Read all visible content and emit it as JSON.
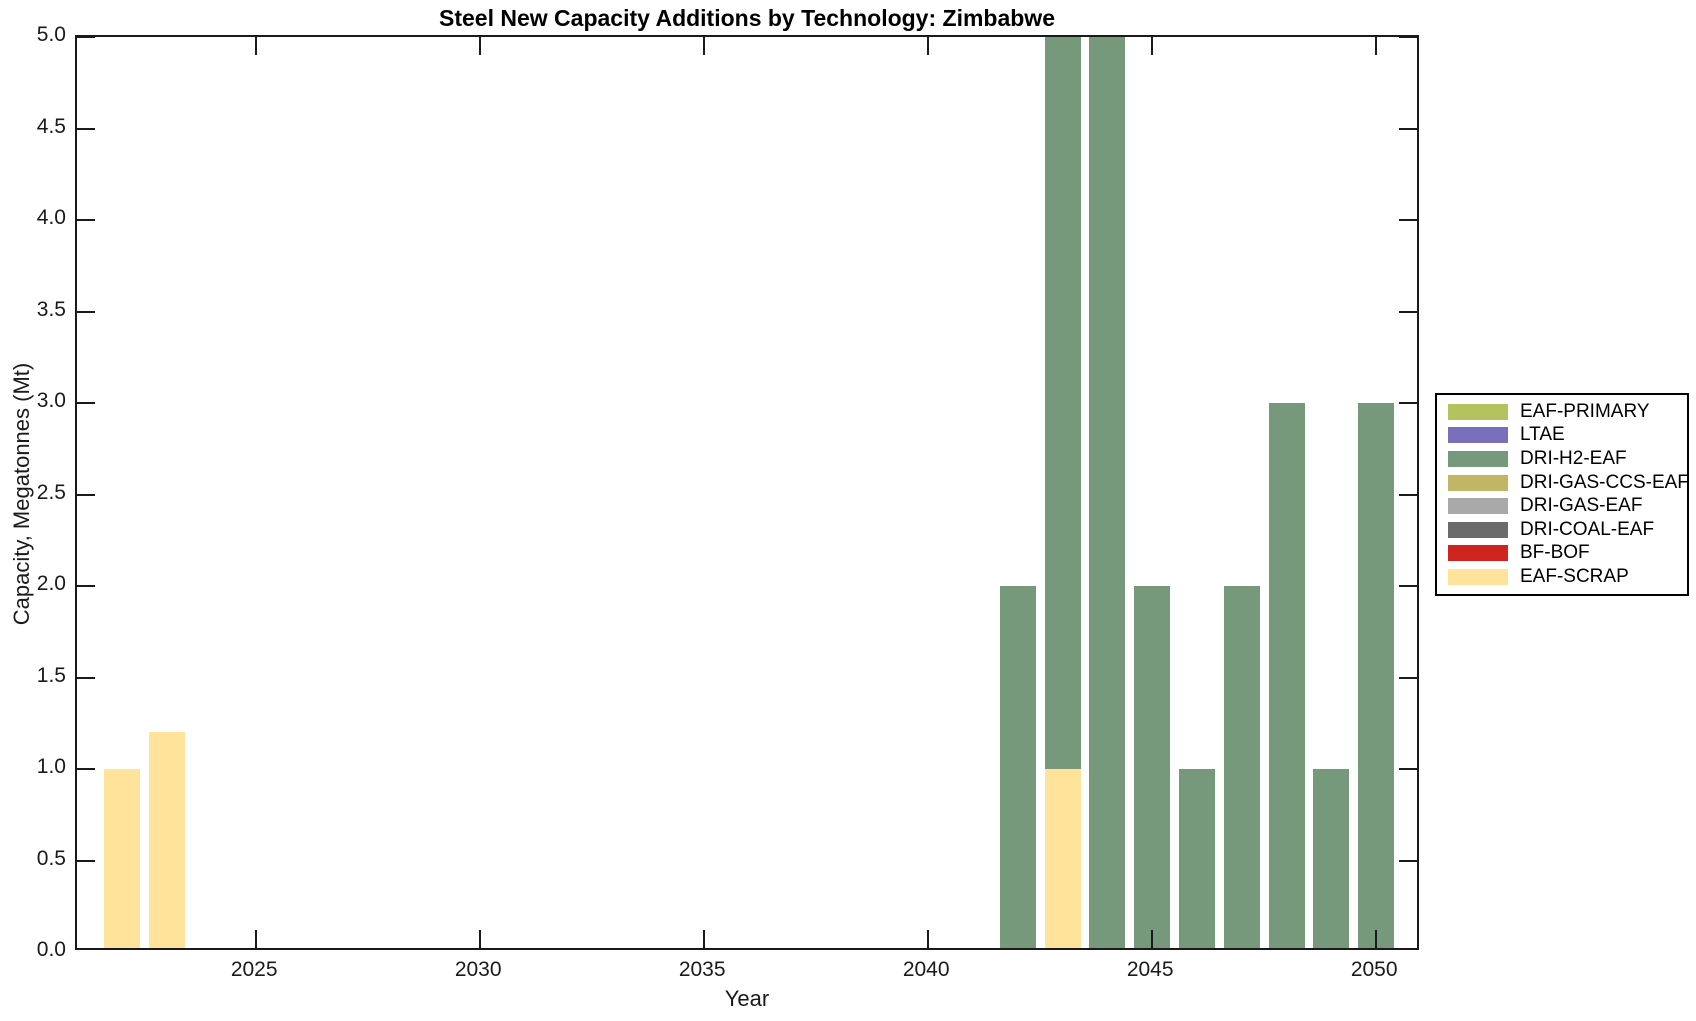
{
  "chart_data": {
    "type": "bar",
    "stacked": true,
    "title": "Steel New Capacity Additions by Technology: Zimbabwe",
    "xlabel": "Year",
    "ylabel": "Capacity, Megatonnes (Mt)",
    "xlim": [
      2021,
      2051
    ],
    "ylim": [
      0,
      5
    ],
    "xticks": [
      2025,
      2030,
      2035,
      2040,
      2045,
      2050
    ],
    "yticks": [
      0.0,
      0.5,
      1.0,
      1.5,
      2.0,
      2.5,
      3.0,
      3.5,
      4.0,
      4.5,
      5.0
    ],
    "ytick_decimals": 1,
    "grid": false,
    "legend_position": "right-outside",
    "bar_width_years": 0.8,
    "legend": [
      {
        "label": "EAF-PRIMARY",
        "color": "#B5C35E"
      },
      {
        "label": "LTAE",
        "color": "#7A6FBA"
      },
      {
        "label": "DRI-H2-EAF",
        "color": "#76997C"
      },
      {
        "label": "DRI-GAS-CCS-EAF",
        "color": "#C2B566"
      },
      {
        "label": "DRI-GAS-EAF",
        "color": "#A9A9A9"
      },
      {
        "label": "DRI-COAL-EAF",
        "color": "#6B6B6B"
      },
      {
        "label": "BF-BOF",
        "color": "#D02420"
      },
      {
        "label": "EAF-SCRAP",
        "color": "#FFE39A"
      }
    ],
    "bars": [
      {
        "year": 2022,
        "segments": [
          {
            "tech": "EAF-SCRAP",
            "value": 1.0
          }
        ]
      },
      {
        "year": 2023,
        "segments": [
          {
            "tech": "EAF-SCRAP",
            "value": 1.2
          }
        ]
      },
      {
        "year": 2042,
        "segments": [
          {
            "tech": "DRI-H2-EAF",
            "value": 2.0
          }
        ]
      },
      {
        "year": 2043,
        "segments": [
          {
            "tech": "EAF-SCRAP",
            "value": 1.0
          },
          {
            "tech": "DRI-H2-EAF",
            "value": 4.0
          }
        ]
      },
      {
        "year": 2044,
        "segments": [
          {
            "tech": "DRI-H2-EAF",
            "value": 5.0
          }
        ]
      },
      {
        "year": 2045,
        "segments": [
          {
            "tech": "DRI-H2-EAF",
            "value": 2.0
          }
        ]
      },
      {
        "year": 2046,
        "segments": [
          {
            "tech": "DRI-H2-EAF",
            "value": 1.0
          }
        ]
      },
      {
        "year": 2047,
        "segments": [
          {
            "tech": "DRI-H2-EAF",
            "value": 2.0
          }
        ]
      },
      {
        "year": 2048,
        "segments": [
          {
            "tech": "DRI-H2-EAF",
            "value": 3.0
          }
        ]
      },
      {
        "year": 2049,
        "segments": [
          {
            "tech": "DRI-H2-EAF",
            "value": 1.0
          }
        ]
      },
      {
        "year": 2050,
        "segments": [
          {
            "tech": "DRI-H2-EAF",
            "value": 3.0
          }
        ]
      }
    ]
  }
}
